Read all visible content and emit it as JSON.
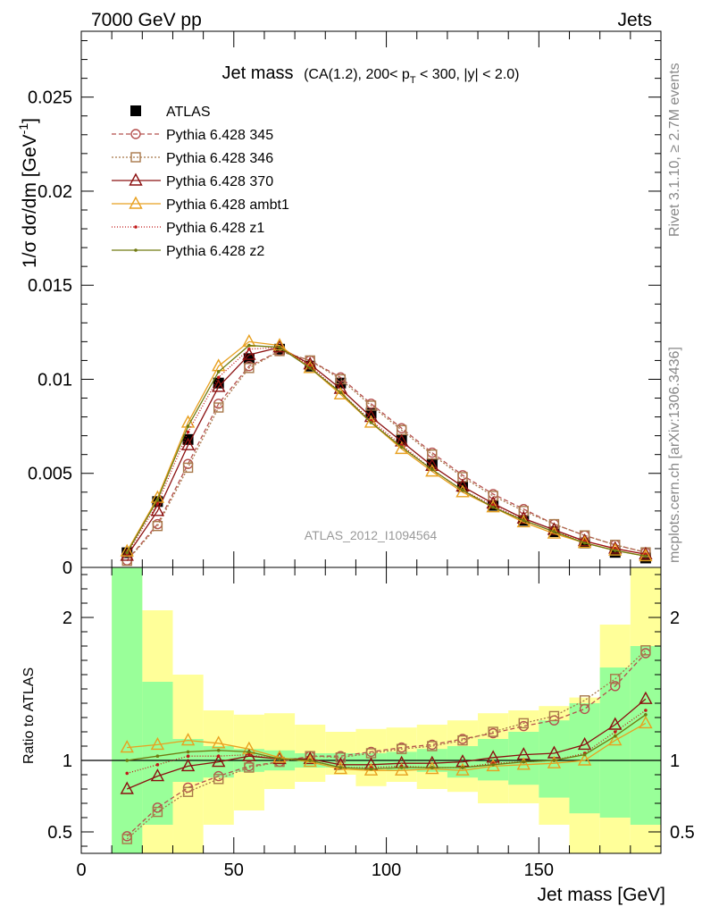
{
  "header": {
    "left": "7000 GeV pp",
    "right": "Jets",
    "side_top": "Rivet 3.1.10, ≥ 2.7M events",
    "side_bottom": "mcplots.cern.ch [arXiv:1306.3436]"
  },
  "chart_data": [
    {
      "type": "line",
      "title": "Jet mass",
      "subtitle": "(CA(1.2), 200< p_T < 300, |y| < 2.0)",
      "ylabel": "1/σ dσ/dm [GeV⁻¹]",
      "watermark": "ATLAS_2012_I1094564",
      "xlim": [
        0,
        190
      ],
      "ylim": [
        0,
        0.0285
      ],
      "yticks": [
        0,
        0.005,
        0.01,
        0.015,
        0.02,
        0.025
      ],
      "ytick_labels": [
        "0",
        "0.005",
        "0.01",
        "0.015",
        "0.02",
        "0.025"
      ],
      "x": [
        15,
        25,
        35,
        45,
        55,
        65,
        75,
        85,
        95,
        105,
        115,
        125,
        135,
        145,
        155,
        165,
        175,
        185
      ],
      "legend_position": "top-left",
      "series": [
        {
          "name": "ATLAS",
          "color": "#000000",
          "marker": "square-filled",
          "dash": "none",
          "values": [
            0.00078,
            0.0035,
            0.0068,
            0.0098,
            0.0111,
            0.0116,
            0.0107,
            0.0098,
            0.0082,
            0.0068,
            0.0055,
            0.0043,
            0.0033,
            0.0025,
            0.0019,
            0.0013,
            0.0008,
            0.0005
          ]
        },
        {
          "name": "Pythia 6.428 345",
          "color": "#b5504e",
          "marker": "circle-open",
          "dash": "5,3",
          "values": [
            0.00037,
            0.0023,
            0.0055,
            0.0087,
            0.0107,
            0.0115,
            0.011,
            0.0101,
            0.0087,
            0.0074,
            0.0061,
            0.0049,
            0.0039,
            0.0031,
            0.0023,
            0.0017,
            0.0012,
            0.0008
          ]
        },
        {
          "name": "Pythia 6.428 346",
          "color": "#a8784a",
          "marker": "square-open",
          "dash": "2,2",
          "values": [
            0.00035,
            0.0022,
            0.0053,
            0.0085,
            0.0106,
            0.0115,
            0.011,
            0.01,
            0.0086,
            0.0073,
            0.006,
            0.0048,
            0.0038,
            0.003,
            0.0023,
            0.0017,
            0.0012,
            0.0008
          ]
        },
        {
          "name": "Pythia 6.428 370",
          "color": "#8b1010",
          "marker": "triangle-open",
          "dash": "none",
          "values": [
            0.00062,
            0.003,
            0.0065,
            0.0096,
            0.0113,
            0.0117,
            0.0108,
            0.0095,
            0.008,
            0.0067,
            0.0054,
            0.0043,
            0.0034,
            0.0026,
            0.002,
            0.0014,
            0.001,
            0.0007
          ]
        },
        {
          "name": "Pythia 6.428 ambt1",
          "color": "#e8a020",
          "marker": "triangle-open",
          "dash": "none",
          "values": [
            0.00085,
            0.0037,
            0.0077,
            0.0107,
            0.012,
            0.0118,
            0.0106,
            0.0092,
            0.0077,
            0.0063,
            0.0051,
            0.004,
            0.0032,
            0.0024,
            0.0018,
            0.0013,
            0.0009,
            0.0006
          ]
        },
        {
          "name": "Pythia 6.428 z1",
          "color": "#c01818",
          "marker": "dot",
          "dash": "1,2",
          "values": [
            0.00071,
            0.0034,
            0.0072,
            0.0101,
            0.0116,
            0.0117,
            0.0107,
            0.0093,
            0.0078,
            0.0065,
            0.0052,
            0.0041,
            0.0033,
            0.0025,
            0.0019,
            0.0014,
            0.001,
            0.0007
          ]
        },
        {
          "name": "Pythia 6.428 z2",
          "color": "#707a10",
          "marker": "dot",
          "dash": "none",
          "values": [
            0.00078,
            0.0036,
            0.0075,
            0.0104,
            0.0118,
            0.0117,
            0.0106,
            0.0093,
            0.0077,
            0.0064,
            0.0052,
            0.0041,
            0.0032,
            0.0025,
            0.0019,
            0.0013,
            0.0009,
            0.0006
          ]
        }
      ]
    },
    {
      "type": "line",
      "ylabel": "Ratio to ATLAS",
      "xlabel": "Jet mass [GeV]",
      "xlim": [
        0,
        190
      ],
      "ylim": [
        0.35,
        2.35
      ],
      "xticks": [
        0,
        50,
        100,
        150
      ],
      "xtick_labels": [
        "0",
        "50",
        "100",
        "150"
      ],
      "yticks": [
        0.5,
        1,
        2
      ],
      "ytick_labels": [
        "0.5",
        "1",
        "2"
      ],
      "reference_line": 1,
      "band_edges": [
        10,
        20,
        30,
        40,
        50,
        60,
        70,
        80,
        90,
        100,
        110,
        120,
        130,
        140,
        150,
        160,
        170,
        180,
        190
      ],
      "band_inner": {
        "color": "#99ff99",
        "lo": [
          0.35,
          0.55,
          0.85,
          0.88,
          0.92,
          0.93,
          0.95,
          0.95,
          0.94,
          0.93,
          0.92,
          0.88,
          0.86,
          0.83,
          0.74,
          0.63,
          0.6,
          0.55
        ],
        "hi": [
          2.35,
          1.55,
          1.15,
          1.1,
          1.08,
          1.07,
          1.05,
          1.05,
          1.05,
          1.06,
          1.08,
          1.1,
          1.15,
          1.2,
          1.28,
          1.4,
          1.65,
          1.8
        ]
      },
      "band_outer": {
        "color": "#ffff99",
        "lo": [
          0.35,
          0.35,
          0.35,
          0.55,
          0.65,
          0.8,
          0.85,
          0.9,
          0.82,
          0.85,
          0.8,
          0.78,
          0.7,
          0.7,
          0.55,
          0.35,
          0.35,
          0.35
        ],
        "hi": [
          2.35,
          2.05,
          1.6,
          1.35,
          1.32,
          1.33,
          1.25,
          1.2,
          1.22,
          1.23,
          1.25,
          1.28,
          1.33,
          1.35,
          1.38,
          1.44,
          1.95,
          2.35
        ]
      },
      "x": [
        15,
        25,
        35,
        45,
        55,
        65,
        75,
        85,
        95,
        105,
        115,
        125,
        135,
        145,
        155,
        165,
        175,
        185
      ],
      "series": [
        {
          "name": "Pythia 6.428 345",
          "color": "#b5504e",
          "marker": "circle-open",
          "dash": "5,3",
          "values": [
            0.47,
            0.67,
            0.81,
            0.89,
            0.96,
            0.99,
            1.03,
            1.03,
            1.06,
            1.09,
            1.11,
            1.15,
            1.19,
            1.24,
            1.28,
            1.36,
            1.52,
            1.75
          ]
        },
        {
          "name": "Pythia 6.428 346",
          "color": "#a8784a",
          "marker": "square-open",
          "dash": "2,2",
          "values": [
            0.45,
            0.64,
            0.78,
            0.87,
            0.95,
            0.99,
            1.03,
            1.02,
            1.05,
            1.08,
            1.1,
            1.14,
            1.2,
            1.26,
            1.31,
            1.42,
            1.57,
            1.77
          ]
        },
        {
          "name": "Pythia 6.428 370",
          "color": "#8b1010",
          "marker": "triangle-open",
          "dash": "none",
          "values": [
            0.8,
            0.89,
            0.96,
            0.99,
            1.03,
            1.01,
            1.01,
            0.97,
            0.97,
            0.98,
            0.98,
            0.99,
            1.02,
            1.04,
            1.05,
            1.11,
            1.25,
            1.43
          ]
        },
        {
          "name": "Pythia 6.428 ambt1",
          "color": "#e8a020",
          "marker": "triangle-open",
          "dash": "none",
          "values": [
            1.09,
            1.11,
            1.14,
            1.12,
            1.08,
            1.02,
            0.99,
            0.94,
            0.93,
            0.93,
            0.94,
            0.93,
            0.96,
            0.97,
            0.98,
            1.0,
            1.14,
            1.26
          ]
        },
        {
          "name": "Pythia 6.428 z1",
          "color": "#c01818",
          "marker": "dot",
          "dash": "1,2",
          "values": [
            0.91,
            0.97,
            1.03,
            1.03,
            1.04,
            1.01,
            1.0,
            0.95,
            0.95,
            0.96,
            0.95,
            0.95,
            0.98,
            0.99,
            1.0,
            1.05,
            1.2,
            1.35
          ]
        },
        {
          "name": "Pythia 6.428 z2",
          "color": "#707a10",
          "marker": "dot",
          "dash": "none",
          "values": [
            1.0,
            1.03,
            1.06,
            1.07,
            1.06,
            1.01,
            1.0,
            0.95,
            0.94,
            0.95,
            0.95,
            0.95,
            0.97,
            0.99,
            1.0,
            1.04,
            1.17,
            1.32
          ]
        }
      ]
    }
  ]
}
